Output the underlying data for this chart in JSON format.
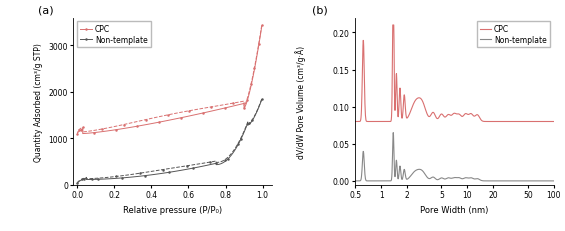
{
  "panel_a": {
    "title": "(a)",
    "xlabel": "Relative pressure (P/P₀)",
    "ylabel": "Quantity Adsorbed (cm³/g STP)",
    "ylim": [
      0,
      3600
    ],
    "xlim": [
      -0.02,
      1.05
    ],
    "yticks": [
      0,
      1000,
      2000,
      3000
    ],
    "xticks": [
      0.0,
      0.2,
      0.4,
      0.6,
      0.8,
      1.0
    ],
    "cpc_color": "#d97070",
    "nontemplate_color": "#555555",
    "legend_labels": [
      "CPC",
      "Non-template"
    ]
  },
  "panel_b": {
    "title": "(b)",
    "xlabel": "Pore Width (nm)",
    "ylabel": "dV/dW Pore Volume (cm³/g·Å)",
    "ylim": [
      -0.005,
      0.22
    ],
    "yticks": [
      0.0,
      0.05,
      0.1,
      0.15,
      0.2
    ],
    "cpc_color": "#d97070",
    "nontemplate_color": "#888888",
    "legend_labels": [
      "CPC",
      "Non-template"
    ]
  }
}
